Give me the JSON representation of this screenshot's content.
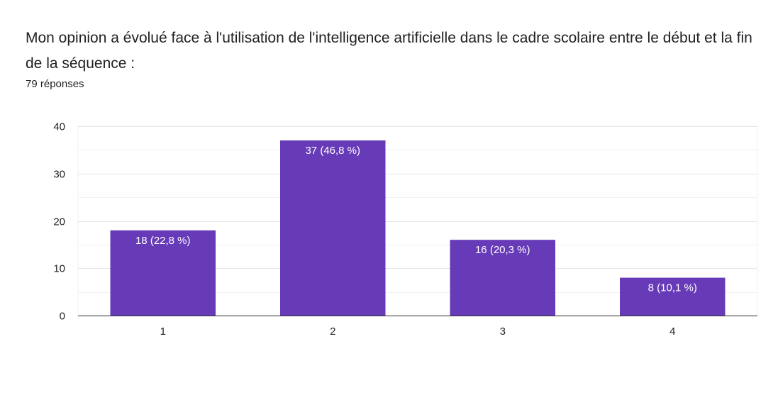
{
  "header": {
    "title": "Mon opinion a évolué face à l'utilisation de l'intelligence artificielle dans le cadre scolaire entre le début et la fin de la séquence :",
    "responses": "79 réponses"
  },
  "colors": {
    "bar": "#673ab7",
    "grid": "#e6e6e6",
    "minor_grid": "#f2f2f2",
    "axis": "#333333"
  },
  "chart_data": {
    "type": "bar",
    "categories": [
      "1",
      "2",
      "3",
      "4"
    ],
    "values": [
      18,
      37,
      16,
      8
    ],
    "data_labels": [
      "18 (22,8 %)",
      "37 (46,8 %)",
      "16 (20,3 %)",
      "8 (10,1 %)"
    ],
    "y_ticks": [
      "0",
      "10",
      "20",
      "30",
      "40"
    ],
    "ylim": [
      0,
      40
    ],
    "grid": true,
    "legend": "none"
  }
}
